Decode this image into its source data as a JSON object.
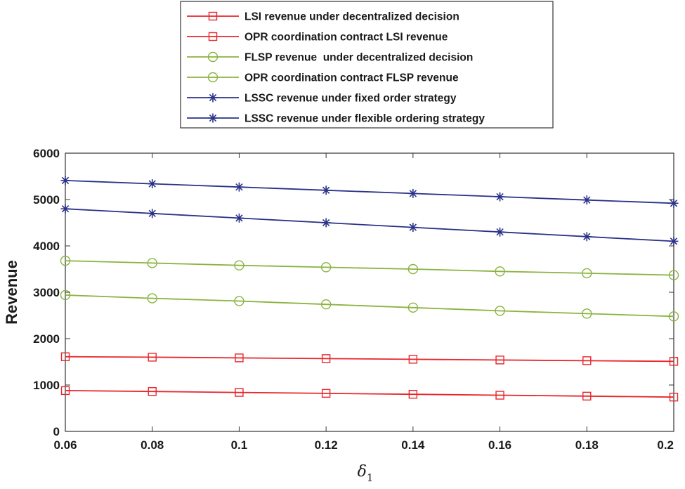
{
  "chart_data": {
    "type": "line",
    "title": "",
    "xlabel": "δ",
    "xlabel_subscript": "1",
    "ylabel": "Revenue",
    "xlim": [
      0.06,
      0.2
    ],
    "ylim": [
      0,
      6000
    ],
    "x": [
      0.06,
      0.08,
      0.1,
      0.12,
      0.14,
      0.16,
      0.18,
      0.2
    ],
    "x_tick_labels": [
      "0.06",
      "0.08",
      "0.1",
      "0.12",
      "0.14",
      "0.16",
      "0.18",
      "0.2"
    ],
    "y_ticks": [
      0,
      1000,
      2000,
      3000,
      4000,
      5000,
      6000
    ],
    "y_tick_labels": [
      "0",
      "1000",
      "2000",
      "3000",
      "4000",
      "5000",
      "6000"
    ],
    "grid": false,
    "legend_position": "top-center-outside",
    "series": [
      {
        "name": "LSI revenue under decentralized decision",
        "color": "#e8262b",
        "marker": "square",
        "values": [
          880,
          860,
          840,
          820,
          800,
          780,
          760,
          740
        ]
      },
      {
        "name": "OPR coordination contract LSI revenue",
        "color": "#e8262b",
        "marker": "square",
        "values": [
          1610,
          1600,
          1585,
          1570,
          1555,
          1540,
          1525,
          1510
        ]
      },
      {
        "name": "FLSP revenue  under decentralized decision",
        "color": "#8ab340",
        "marker": "circle",
        "values": [
          2940,
          2870,
          2810,
          2740,
          2670,
          2600,
          2540,
          2480
        ]
      },
      {
        "name": "OPR coordination contract FLSP revenue",
        "color": "#8ab340",
        "marker": "circle",
        "values": [
          3680,
          3630,
          3580,
          3540,
          3500,
          3450,
          3410,
          3370
        ]
      },
      {
        "name": "LSSC revenue under fixed order strategy",
        "color": "#2a3288",
        "marker": "star",
        "values": [
          4800,
          4700,
          4600,
          4500,
          4400,
          4300,
          4200,
          4100
        ]
      },
      {
        "name": "LSSC revenue under flexible ordering strategy",
        "color": "#2a3288",
        "marker": "star",
        "values": [
          5410,
          5340,
          5270,
          5200,
          5130,
          5060,
          4990,
          4920
        ]
      }
    ]
  }
}
